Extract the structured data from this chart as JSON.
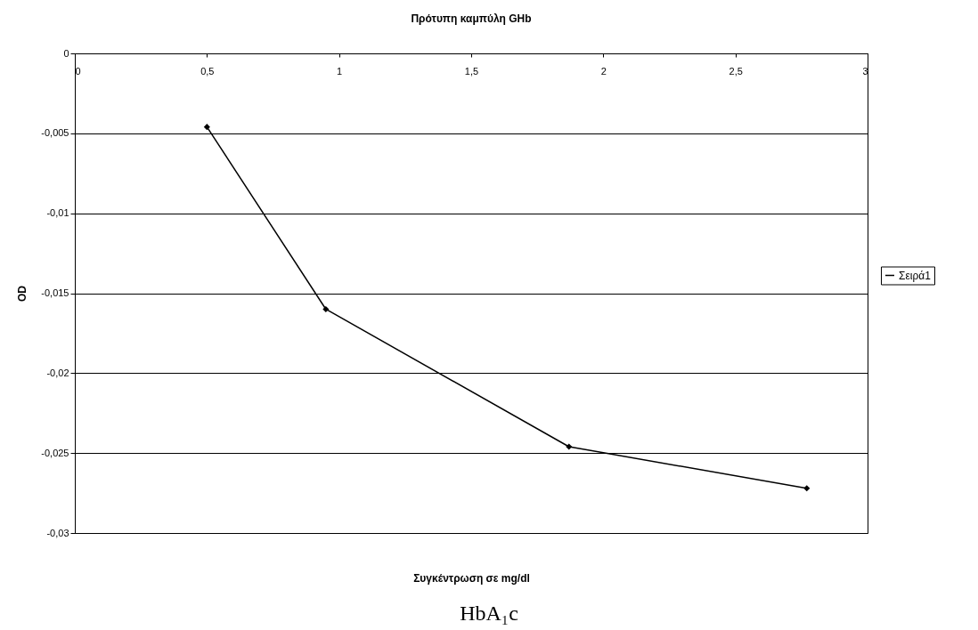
{
  "chart_data": {
    "type": "line",
    "title": "Πρότυπη καμπύλη GHb",
    "xlabel": "Συγκέντρωση σε mg/dl",
    "ylabel": "OD",
    "annotations": [
      "HbA₁c"
    ],
    "x": [
      0.5,
      0.95,
      1.87,
      2.77
    ],
    "series": [
      {
        "name": "Σειρά1",
        "color": "#000000",
        "values": [
          -0.0046,
          -0.016,
          -0.0246,
          -0.0272
        ]
      }
    ],
    "xlim": [
      0,
      3
    ],
    "xticks": [
      0,
      {
        "value": 0.5,
        "label": "0,5"
      },
      1,
      {
        "value": 1.5,
        "label": "1,5"
      },
      2,
      {
        "value": 2.5,
        "label": "2,5"
      },
      3
    ],
    "ylim": [
      -0.03,
      0
    ],
    "yticks": [
      {
        "value": -0.03,
        "label": "-0,03"
      },
      {
        "value": -0.025,
        "label": "-0,025"
      },
      {
        "value": -0.02,
        "label": "-0,02"
      },
      {
        "value": -0.015,
        "label": "-0,015"
      },
      {
        "value": -0.01,
        "label": "-0,01"
      },
      {
        "value": -0.005,
        "label": "-0,005"
      },
      0
    ],
    "grid": "y",
    "legend": "right",
    "marker": "diamond",
    "line_style": "solid"
  }
}
